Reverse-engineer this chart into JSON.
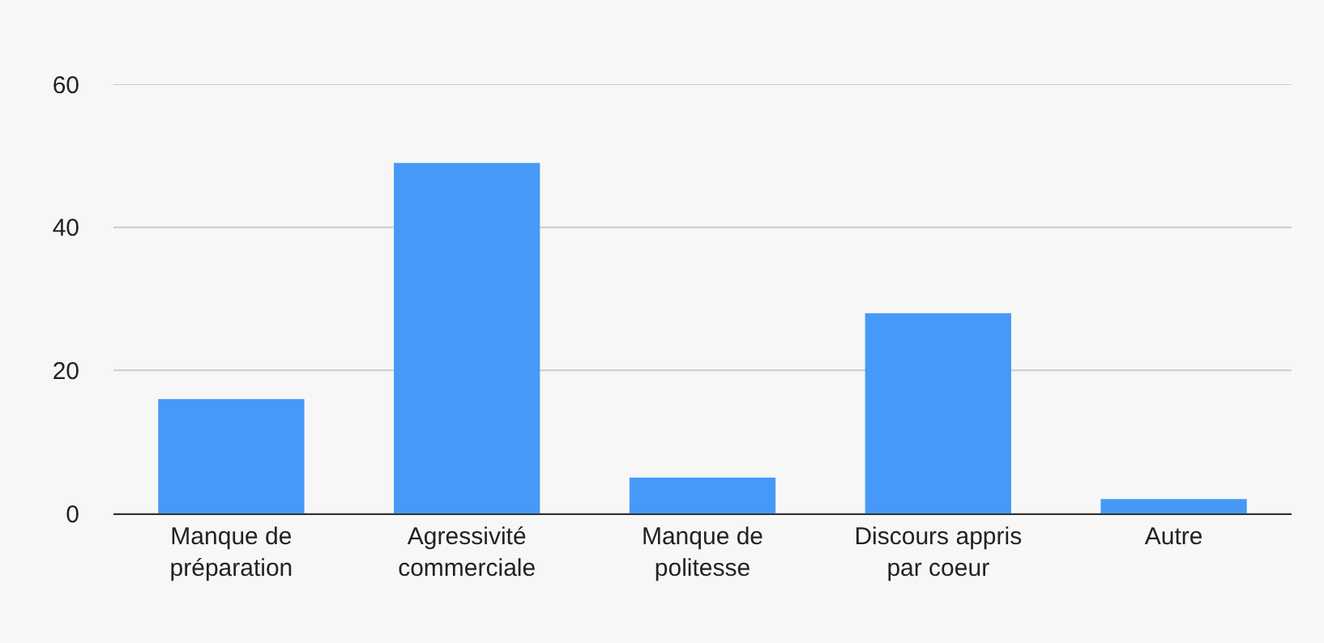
{
  "chart_data": {
    "type": "bar",
    "categories": [
      "Manque de\npréparation",
      "Agressivité\ncommerciale",
      "Manque de\npolitesse",
      "Discours appris\npar coeur",
      "Autre"
    ],
    "values": [
      16,
      49,
      5,
      28,
      2
    ],
    "color": "#4699f7",
    "ylim": [
      0,
      60
    ],
    "yticks": [
      0,
      20,
      40,
      60
    ],
    "grid": "y"
  }
}
